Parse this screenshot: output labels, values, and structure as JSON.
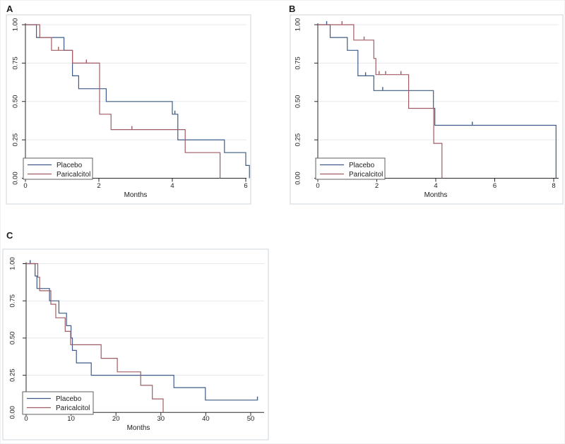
{
  "colors": {
    "placebo": "#3e5c87",
    "paricalcitol": "#a05c63",
    "grid": "#e4eaef",
    "panel_border": "#ccd4da",
    "axis": "#2a2a2a",
    "legend_border": "#5f5f5f",
    "text": "#1c1c1c",
    "background": "#ffffff"
  },
  "chart_data": [
    {
      "type": "line",
      "style": "kaplan-meier-step",
      "panel_label": "A",
      "title": "",
      "xlabel": "Months",
      "ylabel": "",
      "xlim": [
        0,
        6.3
      ],
      "ylim": [
        0,
        1
      ],
      "xticks": [
        "0",
        "2",
        "4",
        "6"
      ],
      "yticks": [
        "0.00",
        "0.25",
        "0.50",
        "0.75",
        "1.00"
      ],
      "grid": "horizontal",
      "legend_position": "bottom-left",
      "series": [
        {
          "name": "Placebo",
          "color": "#3e5c87",
          "steps": [
            [
              0,
              1
            ],
            [
              0.3,
              0.917
            ],
            [
              1.05,
              0.833
            ],
            [
              1.28,
              0.667
            ],
            [
              1.45,
              0.583
            ],
            [
              2.2,
              0.5
            ],
            [
              4.0,
              0.417
            ],
            [
              4.15,
              0.25
            ],
            [
              5.42,
              0.167
            ],
            [
              6.0,
              0.083
            ],
            [
              6.1,
              0
            ]
          ],
          "censored": [
            [
              4.07,
              0.417
            ]
          ]
        },
        {
          "name": "Paricalcitol",
          "color": "#a05c63",
          "steps": [
            [
              0,
              1
            ],
            [
              0.39,
              0.917
            ],
            [
              0.71,
              0.833
            ],
            [
              1.28,
              0.75
            ],
            [
              2.02,
              0.417
            ],
            [
              2.33,
              0.317
            ],
            [
              4.35,
              0.167
            ],
            [
              5.3,
              0
            ]
          ],
          "censored": [
            [
              0.9,
              0.833
            ],
            [
              1.66,
              0.75
            ],
            [
              2.9,
              0.317
            ]
          ]
        }
      ]
    },
    {
      "type": "line",
      "style": "kaplan-meier-step",
      "panel_label": "B",
      "title": "",
      "xlabel": "Months",
      "ylabel": "",
      "xlim": [
        0,
        8.3
      ],
      "ylim": [
        0,
        1
      ],
      "xticks": [
        "0",
        "2",
        "4",
        "6",
        "8"
      ],
      "yticks": [
        "0.00",
        "0.25",
        "0.50",
        "0.75",
        "1.00"
      ],
      "grid": "horizontal",
      "legend_position": "bottom-left",
      "series": [
        {
          "name": "Placebo",
          "color": "#3e5c87",
          "steps": [
            [
              0,
              1
            ],
            [
              0.42,
              0.917
            ],
            [
              1.0,
              0.833
            ],
            [
              1.36,
              0.667
            ],
            [
              1.9,
              0.571
            ],
            [
              3.92,
              0.455
            ],
            [
              3.97,
              0.345
            ],
            [
              8.08,
              0
            ]
          ],
          "censored": [
            [
              0.3,
              1
            ],
            [
              1.62,
              0.667
            ],
            [
              2.2,
              0.571
            ],
            [
              5.24,
              0.345
            ]
          ]
        },
        {
          "name": "Paricalcitol",
          "color": "#a05c63",
          "steps": [
            [
              0,
              1
            ],
            [
              1.22,
              0.9
            ],
            [
              1.9,
              0.78
            ],
            [
              1.97,
              0.675
            ],
            [
              3.08,
              0.455
            ],
            [
              3.93,
              0.227
            ],
            [
              4.21,
              0
            ]
          ],
          "censored": [
            [
              0.82,
              1
            ],
            [
              1.57,
              0.9
            ],
            [
              2.08,
              0.675
            ],
            [
              2.3,
              0.675
            ],
            [
              2.82,
              0.675
            ]
          ]
        }
      ]
    },
    {
      "type": "line",
      "style": "kaplan-meier-step",
      "panel_label": "C",
      "title": "",
      "xlabel": "Months",
      "ylabel": "",
      "xlim": [
        0,
        53
      ],
      "ylim": [
        0,
        1
      ],
      "xticks": [
        "0",
        "10",
        "20",
        "30",
        "40",
        "50"
      ],
      "yticks": [
        "0.00",
        "0.25",
        "0.50",
        "0.75",
        "1.00"
      ],
      "grid": "horizontal",
      "legend_position": "bottom-left",
      "series": [
        {
          "name": "Placebo",
          "color": "#3e5c87",
          "steps": [
            [
              0,
              1
            ],
            [
              2.0,
              0.917
            ],
            [
              2.4,
              0.833
            ],
            [
              5.2,
              0.75
            ],
            [
              7.3,
              0.667
            ],
            [
              9.0,
              0.583
            ],
            [
              10.0,
              0.5
            ],
            [
              10.3,
              0.417
            ],
            [
              11.2,
              0.333
            ],
            [
              14.5,
              0.25
            ],
            [
              32.9,
              0.167
            ],
            [
              39.9,
              0.083
            ]
          ],
          "end_time": 51.6,
          "censored": [
            [
              0.9,
              1
            ],
            [
              51.5,
              0.083
            ]
          ]
        },
        {
          "name": "Paricalcitol",
          "color": "#a05c63",
          "steps": [
            [
              0,
              1
            ],
            [
              2.6,
              0.909
            ],
            [
              3.0,
              0.818
            ],
            [
              5.5,
              0.727
            ],
            [
              6.6,
              0.636
            ],
            [
              8.7,
              0.545
            ],
            [
              9.9,
              0.455
            ],
            [
              16.7,
              0.364
            ],
            [
              20.3,
              0.273
            ],
            [
              25.5,
              0.182
            ],
            [
              28.1,
              0.091
            ],
            [
              30.5,
              0
            ]
          ],
          "censored": []
        }
      ]
    }
  ]
}
